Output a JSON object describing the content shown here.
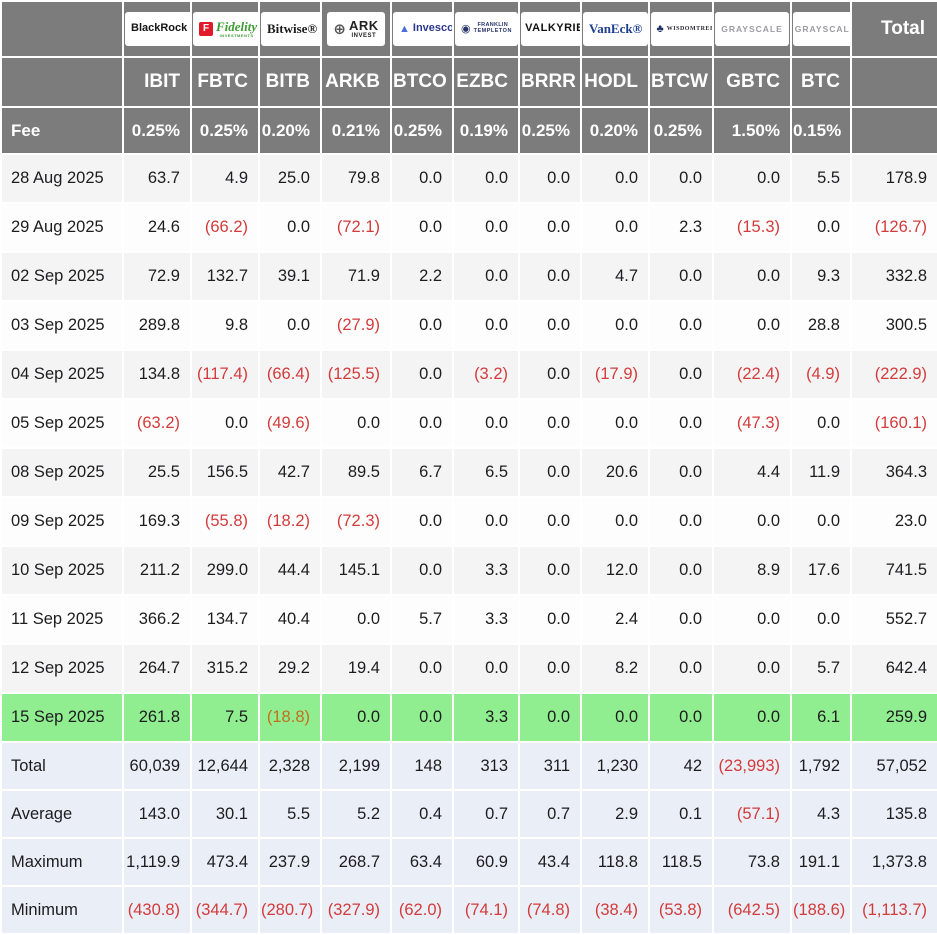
{
  "colors": {
    "header_bg": "#7c7c7c",
    "header_text": "#ffffff",
    "row_odd": "#f4f4f5",
    "row_even": "#fdfdfd",
    "highlight_row": "#90ee90",
    "footer_bg": "#eaeef7",
    "negative": "#d33b3b",
    "negative_on_highlight": "#c2701d"
  },
  "chart_data": {
    "type": "table",
    "total_header": "Total",
    "fee_label": "Fee",
    "columns": [
      {
        "ticker": "IBIT",
        "fee": "0.25%",
        "logo": {
          "text": "BlackRock",
          "text2": "",
          "icon_glyph": "",
          "icon_bg": "",
          "icon_color": "",
          "color": "#151515",
          "size": 11,
          "size2": 0,
          "weight": 800,
          "italic": false,
          "serif": false,
          "spacing": 0
        }
      },
      {
        "ticker": "FBTC",
        "fee": "0.25%",
        "logo": {
          "text": "Fidelity",
          "text2": "INVESTMENTS",
          "icon_glyph": "F",
          "icon_bg": "#e01a2b",
          "icon_color": "#ffffff",
          "color": "#3f9c35",
          "size": 13,
          "size2": 4,
          "weight": 700,
          "italic": true,
          "serif": true,
          "spacing": 0
        }
      },
      {
        "ticker": "BITB",
        "fee": "0.20%",
        "logo": {
          "text": "Bitwise®",
          "text2": "",
          "icon_glyph": "",
          "icon_bg": "",
          "icon_color": "",
          "color": "#1c1c1c",
          "size": 13,
          "size2": 0,
          "weight": 600,
          "italic": false,
          "serif": true,
          "spacing": 0
        }
      },
      {
        "ticker": "ARKB",
        "fee": "0.21%",
        "logo": {
          "text": "ARK",
          "text2": "INVEST",
          "icon_glyph": "⊕",
          "icon_bg": "",
          "icon_color": "#555555",
          "color": "#222222",
          "size": 13,
          "size2": 6,
          "weight": 700,
          "italic": false,
          "serif": false,
          "spacing": 0.5
        }
      },
      {
        "ticker": "BTCO",
        "fee": "0.25%",
        "logo": {
          "text": "Invesco",
          "text2": "",
          "icon_glyph": "▲",
          "icon_bg": "",
          "icon_color": "#4a6fdc",
          "color": "#2b3a8f",
          "size": 11,
          "size2": 0,
          "weight": 800,
          "italic": false,
          "serif": false,
          "spacing": 0
        }
      },
      {
        "ticker": "EZBC",
        "fee": "0.19%",
        "logo": {
          "text": "FRANKLIN",
          "text2": "TEMPLETON",
          "icon_glyph": "◉",
          "icon_bg": "",
          "icon_color": "#27356b",
          "color": "#27356b",
          "size": 5.5,
          "size2": 5.5,
          "weight": 700,
          "italic": false,
          "serif": false,
          "spacing": 0.3
        }
      },
      {
        "ticker": "BRRR",
        "fee": "0.25%",
        "logo": {
          "text": "VALKYRIE",
          "text2": "",
          "icon_glyph": "",
          "icon_bg": "",
          "icon_color": "",
          "color": "#101010",
          "size": 11,
          "size2": 0,
          "weight": 900,
          "italic": false,
          "serif": false,
          "spacing": 0.5
        }
      },
      {
        "ticker": "HODL",
        "fee": "0.20%",
        "logo": {
          "text": "VanEck®",
          "text2": "",
          "icon_glyph": "",
          "icon_bg": "",
          "icon_color": "",
          "color": "#1d3f91",
          "size": 13,
          "size2": 0,
          "weight": 800,
          "italic": false,
          "serif": true,
          "spacing": 0
        }
      },
      {
        "ticker": "BTCW",
        "fee": "0.25%",
        "logo": {
          "text": "WISDOMTREE",
          "text2": "",
          "icon_glyph": "♣",
          "icon_bg": "",
          "icon_color": "#1c2f5e",
          "color": "#2a2a35",
          "size": 6,
          "size2": 0,
          "weight": 600,
          "italic": false,
          "serif": true,
          "spacing": 0.5
        }
      },
      {
        "ticker": "GBTC",
        "fee": "1.50%",
        "logo": {
          "text": "GRAYSCALE",
          "text2": "",
          "icon_glyph": "",
          "icon_bg": "",
          "icon_color": "",
          "color": "#9b9ba3",
          "size": 8.5,
          "size2": 0,
          "weight": 700,
          "italic": false,
          "serif": false,
          "spacing": 1
        }
      },
      {
        "ticker": "BTC",
        "fee": "0.15%",
        "logo": {
          "text": "GRAYSCALE",
          "text2": "",
          "icon_glyph": "",
          "icon_bg": "",
          "icon_color": "",
          "color": "#9b9ba3",
          "size": 8.5,
          "size2": 0,
          "weight": 700,
          "italic": false,
          "serif": false,
          "spacing": 1
        }
      }
    ],
    "rows": [
      {
        "date": "28 Aug 2025",
        "highlight": false,
        "values": [
          "63.7",
          "4.9",
          "25.0",
          "79.8",
          "0.0",
          "0.0",
          "0.0",
          "0.0",
          "0.0",
          "0.0",
          "5.5"
        ],
        "total": "178.9"
      },
      {
        "date": "29 Aug 2025",
        "highlight": false,
        "values": [
          "24.6",
          "(66.2)",
          "0.0",
          "(72.1)",
          "0.0",
          "0.0",
          "0.0",
          "0.0",
          "2.3",
          "(15.3)",
          "0.0"
        ],
        "total": "(126.7)"
      },
      {
        "date": "02 Sep 2025",
        "highlight": false,
        "values": [
          "72.9",
          "132.7",
          "39.1",
          "71.9",
          "2.2",
          "0.0",
          "0.0",
          "4.7",
          "0.0",
          "0.0",
          "9.3"
        ],
        "total": "332.8"
      },
      {
        "date": "03 Sep 2025",
        "highlight": false,
        "values": [
          "289.8",
          "9.8",
          "0.0",
          "(27.9)",
          "0.0",
          "0.0",
          "0.0",
          "0.0",
          "0.0",
          "0.0",
          "28.8"
        ],
        "total": "300.5"
      },
      {
        "date": "04 Sep 2025",
        "highlight": false,
        "values": [
          "134.8",
          "(117.4)",
          "(66.4)",
          "(125.5)",
          "0.0",
          "(3.2)",
          "0.0",
          "(17.9)",
          "0.0",
          "(22.4)",
          "(4.9)"
        ],
        "total": "(222.9)"
      },
      {
        "date": "05 Sep 2025",
        "highlight": false,
        "values": [
          "(63.2)",
          "0.0",
          "(49.6)",
          "0.0",
          "0.0",
          "0.0",
          "0.0",
          "0.0",
          "0.0",
          "(47.3)",
          "0.0"
        ],
        "total": "(160.1)"
      },
      {
        "date": "08 Sep 2025",
        "highlight": false,
        "values": [
          "25.5",
          "156.5",
          "42.7",
          "89.5",
          "6.7",
          "6.5",
          "0.0",
          "20.6",
          "0.0",
          "4.4",
          "11.9"
        ],
        "total": "364.3"
      },
      {
        "date": "09 Sep 2025",
        "highlight": false,
        "values": [
          "169.3",
          "(55.8)",
          "(18.2)",
          "(72.3)",
          "0.0",
          "0.0",
          "0.0",
          "0.0",
          "0.0",
          "0.0",
          "0.0"
        ],
        "total": "23.0"
      },
      {
        "date": "10 Sep 2025",
        "highlight": false,
        "values": [
          "211.2",
          "299.0",
          "44.4",
          "145.1",
          "0.0",
          "3.3",
          "0.0",
          "12.0",
          "0.0",
          "8.9",
          "17.6"
        ],
        "total": "741.5"
      },
      {
        "date": "11 Sep 2025",
        "highlight": false,
        "values": [
          "366.2",
          "134.7",
          "40.4",
          "0.0",
          "5.7",
          "3.3",
          "0.0",
          "2.4",
          "0.0",
          "0.0",
          "0.0"
        ],
        "total": "552.7"
      },
      {
        "date": "12 Sep 2025",
        "highlight": false,
        "values": [
          "264.7",
          "315.2",
          "29.2",
          "19.4",
          "0.0",
          "0.0",
          "0.0",
          "8.2",
          "0.0",
          "0.0",
          "5.7"
        ],
        "total": "642.4"
      },
      {
        "date": "15 Sep 2025",
        "highlight": true,
        "values": [
          "261.8",
          "7.5",
          "(18.8)",
          "0.0",
          "0.0",
          "3.3",
          "0.0",
          "0.0",
          "0.0",
          "0.0",
          "6.1"
        ],
        "total": "259.9"
      }
    ],
    "summary_rows": [
      {
        "label": "Total",
        "values": [
          "60,039",
          "12,644",
          "2,328",
          "2,199",
          "148",
          "313",
          "311",
          "1,230",
          "42",
          "(23,993)",
          "1,792"
        ],
        "total": "57,052"
      },
      {
        "label": "Average",
        "values": [
          "143.0",
          "30.1",
          "5.5",
          "5.2",
          "0.4",
          "0.7",
          "0.7",
          "2.9",
          "0.1",
          "(57.1)",
          "4.3"
        ],
        "total": "135.8"
      },
      {
        "label": "Maximum",
        "values": [
          "1,119.9",
          "473.4",
          "237.9",
          "268.7",
          "63.4",
          "60.9",
          "43.4",
          "118.8",
          "118.5",
          "73.8",
          "191.1"
        ],
        "total": "1,373.8"
      },
      {
        "label": "Minimum",
        "values": [
          "(430.8)",
          "(344.7)",
          "(280.7)",
          "(327.9)",
          "(62.0)",
          "(74.1)",
          "(74.8)",
          "(38.4)",
          "(53.8)",
          "(642.5)",
          "(188.6)"
        ],
        "total": "(1,113.7)"
      }
    ]
  }
}
